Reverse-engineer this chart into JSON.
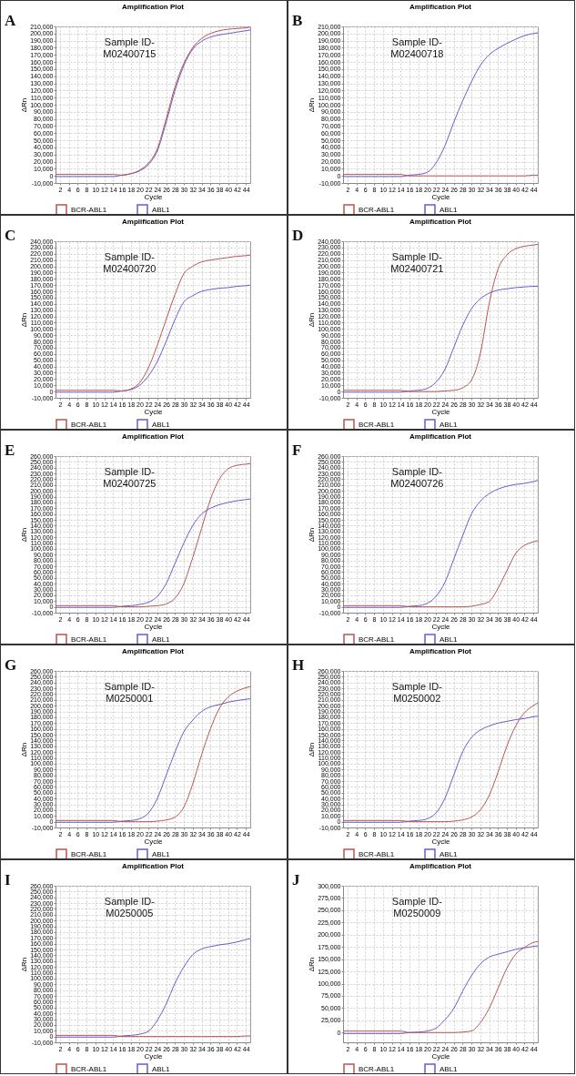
{
  "chart_data": [
    {
      "type": "line",
      "title": "Amplification Plot",
      "xlabel": "Cycle",
      "ylabel": "ΔRn",
      "annotations": [
        "A",
        "Sample ID-\nM02400715"
      ],
      "grid": true,
      "legend": "bottom",
      "x": [
        1,
        8,
        14,
        16,
        18,
        20,
        22,
        24,
        26,
        28,
        30,
        32,
        34,
        36,
        38,
        40,
        42,
        44,
        45
      ],
      "xlim": [
        1,
        45
      ],
      "xticks": [
        2,
        4,
        6,
        8,
        10,
        12,
        14,
        16,
        18,
        20,
        22,
        24,
        26,
        28,
        30,
        32,
        34,
        36,
        38,
        40,
        42,
        44
      ],
      "ylim": [
        -10000,
        210000
      ],
      "yticks": [
        {
          "value": -10000,
          "label": "-10,000"
        },
        {
          "value": 0,
          "label": "0"
        },
        {
          "value": 10000,
          "label": "10,000"
        },
        {
          "value": 20000,
          "label": "20,000"
        },
        {
          "value": 30000,
          "label": "30,000"
        },
        {
          "value": 40000,
          "label": "40,000"
        },
        {
          "value": 50000,
          "label": "50,000"
        },
        {
          "value": 60000,
          "label": "60,000"
        },
        {
          "value": 70000,
          "label": "70,000"
        },
        {
          "value": 80000,
          "label": "80,000"
        },
        {
          "value": 90000,
          "label": "90,000"
        },
        {
          "value": 100000,
          "label": "100,000"
        },
        {
          "value": 110000,
          "label": "110,000"
        },
        {
          "value": 120000,
          "label": "120,000"
        },
        {
          "value": 130000,
          "label": "130,000"
        },
        {
          "value": 140000,
          "label": "140,000"
        },
        {
          "value": 150000,
          "label": "150,000"
        },
        {
          "value": 160000,
          "label": "160,000"
        },
        {
          "value": 170000,
          "label": "170,000"
        },
        {
          "value": 180000,
          "label": "180,000"
        },
        {
          "value": 190000,
          "label": "190,000"
        },
        {
          "value": 200000,
          "label": "200,000"
        },
        {
          "value": 210000,
          "label": "210,000"
        }
      ],
      "series": [
        {
          "name": "BCR-ABL1",
          "color": "#b85450",
          "values": [
            2000,
            2000,
            2000,
            1000,
            3000,
            8000,
            18000,
            38000,
            80000,
            125000,
            158000,
            180000,
            193000,
            200000,
            204000,
            206000,
            207000,
            208000,
            209000
          ]
        },
        {
          "name": "ABL1",
          "color": "#6a5acd",
          "values": [
            -1000,
            -1000,
            -1000,
            1000,
            3000,
            7000,
            16000,
            35000,
            75000,
            120000,
            155000,
            178000,
            189000,
            195000,
            198000,
            200000,
            202000,
            204000,
            205000
          ]
        }
      ]
    },
    {
      "type": "line",
      "title": "Amplification Plot",
      "xlabel": "Cycle",
      "ylabel": "ΔRn",
      "annotations": [
        "B",
        "Sample ID-\nM02400718"
      ],
      "grid": true,
      "legend": "bottom",
      "x": [
        1,
        8,
        14,
        16,
        18,
        20,
        22,
        24,
        26,
        28,
        30,
        32,
        34,
        36,
        38,
        40,
        42,
        44,
        45
      ],
      "xlim": [
        1,
        45
      ],
      "xticks": [
        2,
        4,
        6,
        8,
        10,
        12,
        14,
        16,
        18,
        20,
        22,
        24,
        26,
        28,
        30,
        32,
        34,
        36,
        38,
        40,
        42,
        44
      ],
      "ylim": [
        -10000,
        210000
      ],
      "yticks": [
        {
          "value": -10000,
          "label": "-10,000"
        },
        {
          "value": 0,
          "label": "0"
        },
        {
          "value": 10000,
          "label": "10,000"
        },
        {
          "value": 20000,
          "label": "20,000"
        },
        {
          "value": 30000,
          "label": "30,000"
        },
        {
          "value": 40000,
          "label": "40,000"
        },
        {
          "value": 50000,
          "label": "50,000"
        },
        {
          "value": 60000,
          "label": "60,000"
        },
        {
          "value": 70000,
          "label": "70,000"
        },
        {
          "value": 80000,
          "label": "80,000"
        },
        {
          "value": 90000,
          "label": "90,000"
        },
        {
          "value": 100000,
          "label": "100,000"
        },
        {
          "value": 110000,
          "label": "110,000"
        },
        {
          "value": 120000,
          "label": "120,000"
        },
        {
          "value": 130000,
          "label": "130,000"
        },
        {
          "value": 140000,
          "label": "140,000"
        },
        {
          "value": 150000,
          "label": "150,000"
        },
        {
          "value": 160000,
          "label": "160,000"
        },
        {
          "value": 170000,
          "label": "170,000"
        },
        {
          "value": 180000,
          "label": "180,000"
        },
        {
          "value": 190000,
          "label": "190,000"
        },
        {
          "value": 200000,
          "label": "200,000"
        },
        {
          "value": 210000,
          "label": "210,000"
        }
      ],
      "series": [
        {
          "name": "BCR-ABL1",
          "color": "#b85450",
          "values": [
            2000,
            2000,
            2000,
            0,
            0,
            0,
            0,
            0,
            0,
            0,
            0,
            0,
            0,
            0,
            0,
            0,
            0,
            1000,
            1000
          ]
        },
        {
          "name": "ABL1",
          "color": "#6a5acd",
          "values": [
            -1000,
            -1000,
            -1000,
            1000,
            2000,
            5000,
            18000,
            42000,
            75000,
            105000,
            132000,
            155000,
            170000,
            179000,
            186000,
            192000,
            197000,
            200000,
            201000
          ]
        }
      ]
    },
    {
      "type": "line",
      "title": "Amplification Plot",
      "xlabel": "Cycle",
      "ylabel": "ΔRn",
      "annotations": [
        "C",
        "Sample ID-\nM02400720"
      ],
      "grid": true,
      "legend": "bottom",
      "x": [
        1,
        8,
        14,
        16,
        18,
        20,
        22,
        24,
        26,
        28,
        30,
        32,
        34,
        36,
        38,
        40,
        42,
        44,
        45
      ],
      "xlim": [
        1,
        45
      ],
      "xticks": [
        2,
        4,
        6,
        8,
        10,
        12,
        14,
        16,
        18,
        20,
        22,
        24,
        26,
        28,
        30,
        32,
        34,
        36,
        38,
        40,
        42,
        44
      ],
      "ylim": [
        -10000,
        240000
      ],
      "yticks": [
        {
          "value": -10000,
          "label": "-10,000"
        },
        {
          "value": 0,
          "label": "0"
        },
        {
          "value": 10000,
          "label": "10,000"
        },
        {
          "value": 20000,
          "label": "20,000"
        },
        {
          "value": 30000,
          "label": "30,000"
        },
        {
          "value": 40000,
          "label": "40,000"
        },
        {
          "value": 50000,
          "label": "50,000"
        },
        {
          "value": 60000,
          "label": "60,000"
        },
        {
          "value": 70000,
          "label": "70,000"
        },
        {
          "value": 80000,
          "label": "80,000"
        },
        {
          "value": 90000,
          "label": "90,000"
        },
        {
          "value": 100000,
          "label": "100,000"
        },
        {
          "value": 110000,
          "label": "110,000"
        },
        {
          "value": 120000,
          "label": "120,000"
        },
        {
          "value": 130000,
          "label": "130,000"
        },
        {
          "value": 140000,
          "label": "140,000"
        },
        {
          "value": 150000,
          "label": "150,000"
        },
        {
          "value": 160000,
          "label": "160,000"
        },
        {
          "value": 170000,
          "label": "170,000"
        },
        {
          "value": 180000,
          "label": "180,000"
        },
        {
          "value": 190000,
          "label": "190,000"
        },
        {
          "value": 200000,
          "label": "200,000"
        },
        {
          "value": 210000,
          "label": "210,000"
        },
        {
          "value": 220000,
          "label": "220,000"
        },
        {
          "value": 230000,
          "label": "230,000"
        },
        {
          "value": 240000,
          "label": "240,000"
        }
      ],
      "series": [
        {
          "name": "BCR-ABL1",
          "color": "#b85450",
          "values": [
            2000,
            2000,
            2000,
            1000,
            4000,
            14000,
            38000,
            74000,
            115000,
            155000,
            188000,
            200000,
            207000,
            210000,
            212000,
            214000,
            216000,
            217000,
            218000
          ]
        },
        {
          "name": "ABL1",
          "color": "#6a5acd",
          "values": [
            -1000,
            -1000,
            -1000,
            1000,
            3000,
            10000,
            25000,
            48000,
            80000,
            115000,
            143000,
            153000,
            160000,
            163000,
            165000,
            166000,
            168000,
            169000,
            170000
          ]
        }
      ]
    },
    {
      "type": "line",
      "title": "Amplification Plot",
      "xlabel": "Cycle",
      "ylabel": "ΔRn",
      "annotations": [
        "D",
        "Sample ID-\nM02400721"
      ],
      "grid": true,
      "legend": "bottom",
      "x": [
        1,
        8,
        14,
        16,
        18,
        20,
        22,
        24,
        26,
        28,
        30,
        32,
        34,
        36,
        38,
        40,
        42,
        44,
        45
      ],
      "xlim": [
        1,
        45
      ],
      "xticks": [
        2,
        4,
        6,
        8,
        10,
        12,
        14,
        16,
        18,
        20,
        22,
        24,
        26,
        28,
        30,
        32,
        34,
        36,
        38,
        40,
        42,
        44
      ],
      "ylim": [
        -10000,
        240000
      ],
      "yticks": [
        {
          "value": -10000,
          "label": "-10,000"
        },
        {
          "value": 0,
          "label": "0"
        },
        {
          "value": 10000,
          "label": "10,000"
        },
        {
          "value": 20000,
          "label": "20,000"
        },
        {
          "value": 30000,
          "label": "30,000"
        },
        {
          "value": 40000,
          "label": "40,000"
        },
        {
          "value": 50000,
          "label": "50,000"
        },
        {
          "value": 60000,
          "label": "60,000"
        },
        {
          "value": 70000,
          "label": "70,000"
        },
        {
          "value": 80000,
          "label": "80,000"
        },
        {
          "value": 90000,
          "label": "90,000"
        },
        {
          "value": 100000,
          "label": "100,000"
        },
        {
          "value": 110000,
          "label": "110,000"
        },
        {
          "value": 120000,
          "label": "120,000"
        },
        {
          "value": 130000,
          "label": "130,000"
        },
        {
          "value": 140000,
          "label": "140,000"
        },
        {
          "value": 150000,
          "label": "150,000"
        },
        {
          "value": 160000,
          "label": "160,000"
        },
        {
          "value": 170000,
          "label": "170,000"
        },
        {
          "value": 180000,
          "label": "180,000"
        },
        {
          "value": 190000,
          "label": "190,000"
        },
        {
          "value": 200000,
          "label": "200,000"
        },
        {
          "value": 210000,
          "label": "210,000"
        },
        {
          "value": 220000,
          "label": "220,000"
        },
        {
          "value": 230000,
          "label": "230,000"
        },
        {
          "value": 240000,
          "label": "240,000"
        }
      ],
      "series": [
        {
          "name": "BCR-ABL1",
          "color": "#b85450",
          "values": [
            2000,
            2000,
            2000,
            0,
            0,
            0,
            0,
            1000,
            2000,
            6000,
            18000,
            60000,
            140000,
            195000,
            218000,
            228000,
            232000,
            234000,
            235000
          ]
        },
        {
          "name": "ABL1",
          "color": "#6a5acd",
          "values": [
            -1000,
            -1000,
            -1000,
            1000,
            2000,
            5000,
            15000,
            35000,
            70000,
            105000,
            132000,
            148000,
            157000,
            162000,
            164000,
            166000,
            167000,
            168000,
            168000
          ]
        }
      ]
    },
    {
      "type": "line",
      "title": "Amplification Plot",
      "xlabel": "Cycle",
      "ylabel": "ΔRn",
      "annotations": [
        "E",
        "Sample ID-\nM02400725"
      ],
      "grid": true,
      "legend": "bottom",
      "x": [
        1,
        8,
        14,
        16,
        18,
        20,
        22,
        24,
        26,
        28,
        30,
        32,
        34,
        36,
        38,
        40,
        42,
        44,
        45
      ],
      "xlim": [
        1,
        45
      ],
      "xticks": [
        2,
        4,
        6,
        8,
        10,
        12,
        14,
        16,
        18,
        20,
        22,
        24,
        26,
        28,
        30,
        32,
        34,
        36,
        38,
        40,
        42,
        44
      ],
      "ylim": [
        -10000,
        260000
      ],
      "yticks": [
        {
          "value": -10000,
          "label": "-10,000"
        },
        {
          "value": 0,
          "label": "0"
        },
        {
          "value": 10000,
          "label": "10,000"
        },
        {
          "value": 20000,
          "label": "20,000"
        },
        {
          "value": 30000,
          "label": "30,000"
        },
        {
          "value": 40000,
          "label": "40,000"
        },
        {
          "value": 50000,
          "label": "50,000"
        },
        {
          "value": 60000,
          "label": "60,000"
        },
        {
          "value": 70000,
          "label": "70,000"
        },
        {
          "value": 80000,
          "label": "80,000"
        },
        {
          "value": 90000,
          "label": "90,000"
        },
        {
          "value": 100000,
          "label": "100,000"
        },
        {
          "value": 110000,
          "label": "110,000"
        },
        {
          "value": 120000,
          "label": "120,000"
        },
        {
          "value": 130000,
          "label": "130,000"
        },
        {
          "value": 140000,
          "label": "140,000"
        },
        {
          "value": 150000,
          "label": "150,000"
        },
        {
          "value": 160000,
          "label": "160,000"
        },
        {
          "value": 170000,
          "label": "170,000"
        },
        {
          "value": 180000,
          "label": "180,000"
        },
        {
          "value": 190000,
          "label": "190,000"
        },
        {
          "value": 200000,
          "label": "200,000"
        },
        {
          "value": 210000,
          "label": "210,000"
        },
        {
          "value": 220000,
          "label": "220,000"
        },
        {
          "value": 230000,
          "label": "230,000"
        },
        {
          "value": 240000,
          "label": "240,000"
        },
        {
          "value": 250000,
          "label": "250,000"
        },
        {
          "value": 260000,
          "label": "260,000"
        }
      ],
      "series": [
        {
          "name": "BCR-ABL1",
          "color": "#b85450",
          "values": [
            2000,
            2000,
            2000,
            0,
            0,
            0,
            1000,
            2000,
            5000,
            15000,
            40000,
            85000,
            135000,
            185000,
            220000,
            238000,
            244000,
            246000,
            247000
          ]
        },
        {
          "name": "ABL1",
          "color": "#6a5acd",
          "values": [
            -1000,
            -1000,
            -1000,
            1000,
            2000,
            4000,
            8000,
            18000,
            40000,
            75000,
            110000,
            140000,
            160000,
            170000,
            176000,
            180000,
            183000,
            185000,
            186000
          ]
        }
      ]
    },
    {
      "type": "line",
      "title": "Amplification Plot",
      "xlabel": "Cycle",
      "ylabel": "ΔRn",
      "annotations": [
        "F",
        "Sample ID-\nM02400726"
      ],
      "grid": true,
      "legend": "bottom",
      "x": [
        1,
        8,
        14,
        16,
        18,
        20,
        22,
        24,
        26,
        28,
        30,
        32,
        34,
        36,
        38,
        40,
        42,
        44,
        45
      ],
      "xlim": [
        1,
        45
      ],
      "xticks": [
        2,
        4,
        6,
        8,
        10,
        12,
        14,
        16,
        18,
        20,
        22,
        24,
        26,
        28,
        30,
        32,
        34,
        36,
        38,
        40,
        42,
        44
      ],
      "ylim": [
        -10000,
        260000
      ],
      "yticks": [
        {
          "value": -10000,
          "label": "-10,000"
        },
        {
          "value": 0,
          "label": "0"
        },
        {
          "value": 10000,
          "label": "10,000"
        },
        {
          "value": 20000,
          "label": "20,000"
        },
        {
          "value": 30000,
          "label": "30,000"
        },
        {
          "value": 40000,
          "label": "40,000"
        },
        {
          "value": 50000,
          "label": "50,000"
        },
        {
          "value": 60000,
          "label": "60,000"
        },
        {
          "value": 70000,
          "label": "70,000"
        },
        {
          "value": 80000,
          "label": "80,000"
        },
        {
          "value": 90000,
          "label": "90,000"
        },
        {
          "value": 100000,
          "label": "100,000"
        },
        {
          "value": 110000,
          "label": "110,000"
        },
        {
          "value": 120000,
          "label": "120,000"
        },
        {
          "value": 130000,
          "label": "130,000"
        },
        {
          "value": 140000,
          "label": "140,000"
        },
        {
          "value": 150000,
          "label": "150,000"
        },
        {
          "value": 160000,
          "label": "160,000"
        },
        {
          "value": 170000,
          "label": "170,000"
        },
        {
          "value": 180000,
          "label": "180,000"
        },
        {
          "value": 190000,
          "label": "190,000"
        },
        {
          "value": 200000,
          "label": "200,000"
        },
        {
          "value": 210000,
          "label": "210,000"
        },
        {
          "value": 220000,
          "label": "220,000"
        },
        {
          "value": 230000,
          "label": "230,000"
        },
        {
          "value": 240000,
          "label": "240,000"
        },
        {
          "value": 250000,
          "label": "250,000"
        },
        {
          "value": 260000,
          "label": "260,000"
        }
      ],
      "series": [
        {
          "name": "BCR-ABL1",
          "color": "#b85450",
          "values": [
            2000,
            2000,
            2000,
            0,
            0,
            0,
            0,
            0,
            0,
            0,
            1000,
            4000,
            9000,
            32000,
            62000,
            92000,
            106000,
            112000,
            114000
          ]
        },
        {
          "name": "ABL1",
          "color": "#6a5acd",
          "values": [
            -1000,
            -1000,
            -1000,
            1000,
            2000,
            6000,
            18000,
            42000,
            82000,
            122000,
            160000,
            182000,
            195000,
            203000,
            208000,
            211000,
            213000,
            216000,
            218000
          ]
        }
      ]
    },
    {
      "type": "line",
      "title": "Amplification Plot",
      "xlabel": "Cycle",
      "ylabel": "ΔRn",
      "annotations": [
        "G",
        "Sample ID-\nM0250001"
      ],
      "grid": true,
      "legend": "bottom",
      "x": [
        1,
        8,
        14,
        16,
        18,
        20,
        22,
        24,
        26,
        28,
        30,
        32,
        34,
        36,
        38,
        40,
        42,
        44,
        45
      ],
      "xlim": [
        1,
        45
      ],
      "xticks": [
        2,
        4,
        6,
        8,
        10,
        12,
        14,
        16,
        18,
        20,
        22,
        24,
        26,
        28,
        30,
        32,
        34,
        36,
        38,
        40,
        42,
        44
      ],
      "ylim": [
        -10000,
        260000
      ],
      "yticks": [
        {
          "value": -10000,
          "label": "-10,000"
        },
        {
          "value": 0,
          "label": "0"
        },
        {
          "value": 10000,
          "label": "10,000"
        },
        {
          "value": 20000,
          "label": "20,000"
        },
        {
          "value": 30000,
          "label": "30,000"
        },
        {
          "value": 40000,
          "label": "40,000"
        },
        {
          "value": 50000,
          "label": "50,000"
        },
        {
          "value": 60000,
          "label": "60,000"
        },
        {
          "value": 70000,
          "label": "70,000"
        },
        {
          "value": 80000,
          "label": "80,000"
        },
        {
          "value": 90000,
          "label": "90,000"
        },
        {
          "value": 100000,
          "label": "100,000"
        },
        {
          "value": 110000,
          "label": "110,000"
        },
        {
          "value": 120000,
          "label": "120,000"
        },
        {
          "value": 130000,
          "label": "130,000"
        },
        {
          "value": 140000,
          "label": "140,000"
        },
        {
          "value": 150000,
          "label": "150,000"
        },
        {
          "value": 160000,
          "label": "160,000"
        },
        {
          "value": 170000,
          "label": "170,000"
        },
        {
          "value": 180000,
          "label": "180,000"
        },
        {
          "value": 190000,
          "label": "190,000"
        },
        {
          "value": 200000,
          "label": "200,000"
        },
        {
          "value": 210000,
          "label": "210,000"
        },
        {
          "value": 220000,
          "label": "220,000"
        },
        {
          "value": 230000,
          "label": "230,000"
        },
        {
          "value": 240000,
          "label": "240,000"
        },
        {
          "value": 250000,
          "label": "250,000"
        },
        {
          "value": 260000,
          "label": "260,000"
        }
      ],
      "series": [
        {
          "name": "BCR-ABL1",
          "color": "#b85450",
          "values": [
            2000,
            2000,
            2000,
            0,
            0,
            0,
            0,
            1000,
            3000,
            8000,
            25000,
            65000,
            115000,
            160000,
            195000,
            215000,
            225000,
            231000,
            233000
          ]
        },
        {
          "name": "ABL1",
          "color": "#6a5acd",
          "values": [
            -1000,
            -1000,
            -1000,
            1000,
            2000,
            5000,
            15000,
            40000,
            80000,
            120000,
            155000,
            175000,
            190000,
            198000,
            202000,
            206000,
            209000,
            211000,
            212000
          ]
        }
      ]
    },
    {
      "type": "line",
      "title": "Amplification Plot",
      "xlabel": "Cycle",
      "ylabel": "ΔRn",
      "annotations": [
        "H",
        "Sample ID-\nM0250002"
      ],
      "grid": true,
      "legend": "bottom",
      "x": [
        1,
        8,
        14,
        16,
        18,
        20,
        22,
        24,
        26,
        28,
        30,
        32,
        34,
        36,
        38,
        40,
        42,
        44,
        45
      ],
      "xlim": [
        1,
        45
      ],
      "xticks": [
        2,
        4,
        6,
        8,
        10,
        12,
        14,
        16,
        18,
        20,
        22,
        24,
        26,
        28,
        30,
        32,
        34,
        36,
        38,
        40,
        42,
        44
      ],
      "ylim": [
        -10000,
        260000
      ],
      "yticks": [
        {
          "value": -10000,
          "label": "-10,000"
        },
        {
          "value": 0,
          "label": "0"
        },
        {
          "value": 10000,
          "label": "10,000"
        },
        {
          "value": 20000,
          "label": "20,000"
        },
        {
          "value": 30000,
          "label": "30,000"
        },
        {
          "value": 40000,
          "label": "40,000"
        },
        {
          "value": 50000,
          "label": "50,000"
        },
        {
          "value": 60000,
          "label": "60,000"
        },
        {
          "value": 70000,
          "label": "70,000"
        },
        {
          "value": 80000,
          "label": "80,000"
        },
        {
          "value": 90000,
          "label": "90,000"
        },
        {
          "value": 100000,
          "label": "100,000"
        },
        {
          "value": 110000,
          "label": "110,000"
        },
        {
          "value": 120000,
          "label": "120,000"
        },
        {
          "value": 130000,
          "label": "130,000"
        },
        {
          "value": 140000,
          "label": "140,000"
        },
        {
          "value": 150000,
          "label": "150,000"
        },
        {
          "value": 160000,
          "label": "160,000"
        },
        {
          "value": 170000,
          "label": "170,000"
        },
        {
          "value": 180000,
          "label": "180,000"
        },
        {
          "value": 190000,
          "label": "190,000"
        },
        {
          "value": 200000,
          "label": "200,000"
        },
        {
          "value": 210000,
          "label": "210,000"
        },
        {
          "value": 220000,
          "label": "220,000"
        },
        {
          "value": 230000,
          "label": "230,000"
        },
        {
          "value": 240000,
          "label": "240,000"
        },
        {
          "value": 250000,
          "label": "250,000"
        },
        {
          "value": 260000,
          "label": "260,000"
        }
      ],
      "series": [
        {
          "name": "BCR-ABL1",
          "color": "#b85450",
          "values": [
            2000,
            2000,
            2000,
            0,
            0,
            0,
            0,
            0,
            1000,
            3000,
            8000,
            20000,
            45000,
            85000,
            130000,
            165000,
            188000,
            200000,
            205000
          ]
        },
        {
          "name": "ABL1",
          "color": "#6a5acd",
          "values": [
            -1000,
            -1000,
            -1000,
            1000,
            2000,
            5000,
            15000,
            40000,
            80000,
            120000,
            145000,
            158000,
            165000,
            170000,
            173000,
            176000,
            178000,
            181000,
            182000
          ]
        }
      ]
    },
    {
      "type": "line",
      "title": "Amplification Plot",
      "xlabel": "Cycle",
      "ylabel": "ΔRn",
      "annotations": [
        "I",
        "Sample ID-\nM0250005"
      ],
      "grid": true,
      "legend": "bottom",
      "x": [
        1,
        8,
        14,
        16,
        18,
        20,
        22,
        24,
        26,
        28,
        30,
        32,
        34,
        36,
        38,
        40,
        42,
        44,
        45
      ],
      "xlim": [
        1,
        45
      ],
      "xticks": [
        2,
        4,
        6,
        8,
        10,
        12,
        14,
        16,
        18,
        20,
        22,
        24,
        26,
        28,
        30,
        32,
        34,
        36,
        38,
        40,
        42,
        44
      ],
      "ylim": [
        -10000,
        260000
      ],
      "yticks": [
        {
          "value": -10000,
          "label": "-10,000"
        },
        {
          "value": 0,
          "label": "0"
        },
        {
          "value": 10000,
          "label": "10,000"
        },
        {
          "value": 20000,
          "label": "20,000"
        },
        {
          "value": 30000,
          "label": "30,000"
        },
        {
          "value": 40000,
          "label": "40,000"
        },
        {
          "value": 50000,
          "label": "50,000"
        },
        {
          "value": 60000,
          "label": "60,000"
        },
        {
          "value": 70000,
          "label": "70,000"
        },
        {
          "value": 80000,
          "label": "80,000"
        },
        {
          "value": 90000,
          "label": "90,000"
        },
        {
          "value": 100000,
          "label": "100,000"
        },
        {
          "value": 110000,
          "label": "110,000"
        },
        {
          "value": 120000,
          "label": "120,000"
        },
        {
          "value": 130000,
          "label": "130,000"
        },
        {
          "value": 140000,
          "label": "140,000"
        },
        {
          "value": 150000,
          "label": "150,000"
        },
        {
          "value": 160000,
          "label": "160,000"
        },
        {
          "value": 170000,
          "label": "170,000"
        },
        {
          "value": 180000,
          "label": "180,000"
        },
        {
          "value": 190000,
          "label": "190,000"
        },
        {
          "value": 200000,
          "label": "200,000"
        },
        {
          "value": 210000,
          "label": "210,000"
        },
        {
          "value": 220000,
          "label": "220,000"
        },
        {
          "value": 230000,
          "label": "230,000"
        },
        {
          "value": 240000,
          "label": "240,000"
        },
        {
          "value": 250000,
          "label": "250,000"
        },
        {
          "value": 260000,
          "label": "260,000"
        }
      ],
      "series": [
        {
          "name": "BCR-ABL1",
          "color": "#b85450",
          "values": [
            2000,
            2000,
            2000,
            0,
            0,
            0,
            0,
            0,
            0,
            0,
            0,
            0,
            0,
            0,
            0,
            0,
            0,
            1000,
            1000
          ]
        },
        {
          "name": "ABL1",
          "color": "#6a5acd",
          "values": [
            -1000,
            -1000,
            -1000,
            1000,
            2000,
            4000,
            9000,
            28000,
            56000,
            92000,
            120000,
            141000,
            151000,
            155000,
            158000,
            160000,
            163000,
            167000,
            169000
          ]
        }
      ]
    },
    {
      "type": "line",
      "title": "Amplification Plot",
      "xlabel": "Cycle",
      "ylabel": "ΔRn",
      "annotations": [
        "J",
        "Sample ID-\nM0250009"
      ],
      "grid": true,
      "legend": "bottom",
      "x": [
        1,
        8,
        14,
        16,
        18,
        20,
        22,
        24,
        26,
        28,
        30,
        32,
        34,
        36,
        38,
        40,
        42,
        44,
        45
      ],
      "xlim": [
        1,
        45
      ],
      "xticks": [
        2,
        4,
        6,
        8,
        10,
        12,
        14,
        16,
        18,
        20,
        22,
        24,
        26,
        28,
        30,
        32,
        34,
        36,
        38,
        40,
        42,
        44
      ],
      "ylim": [
        -20000,
        300000
      ],
      "yticks": [
        {
          "value": 0,
          "label": "0"
        },
        {
          "value": 25000,
          "label": "25,000"
        },
        {
          "value": 50000,
          "label": "50,000"
        },
        {
          "value": 75000,
          "label": "75,000"
        },
        {
          "value": 100000,
          "label": "100,000"
        },
        {
          "value": 125000,
          "label": "125,000"
        },
        {
          "value": 150000,
          "label": "150,000"
        },
        {
          "value": 175000,
          "label": "175,000"
        },
        {
          "value": 200000,
          "label": "200,000"
        },
        {
          "value": 225000,
          "label": "225,000"
        },
        {
          "value": 250000,
          "label": "250,000"
        },
        {
          "value": 275000,
          "label": "275,000"
        },
        {
          "value": 300000,
          "label": "300,000"
        }
      ],
      "series": [
        {
          "name": "BCR-ABL1",
          "color": "#b85450",
          "values": [
            3000,
            3000,
            3000,
            0,
            0,
            0,
            0,
            0,
            0,
            1000,
            3000,
            20000,
            49000,
            90000,
            131000,
            160000,
            174000,
            184000,
            186000
          ]
        },
        {
          "name": "ABL1",
          "color": "#6a5acd",
          "values": [
            -2000,
            -2000,
            -2000,
            0,
            1000,
            3000,
            9000,
            26000,
            49000,
            84000,
            116000,
            140000,
            154000,
            160000,
            165000,
            170000,
            173000,
            176000,
            177000
          ]
        }
      ]
    }
  ]
}
